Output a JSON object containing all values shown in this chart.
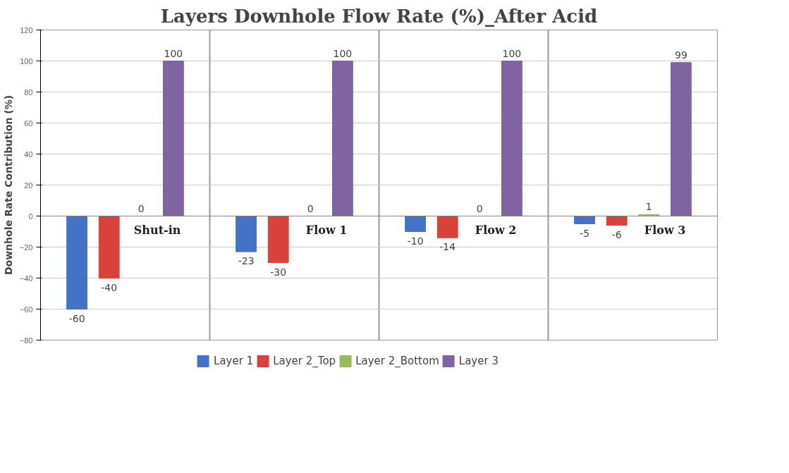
{
  "chart_data": {
    "type": "bar",
    "title": "Layers Downhole Flow Rate (%)_After Acid",
    "ylabel": "Downhole Rate Contribution (%)",
    "categories": [
      "Shut-in",
      "Flow 1",
      "Flow 2",
      "Flow 3"
    ],
    "series": [
      {
        "name": "Layer 1",
        "color": "#4472c4",
        "values": [
          -60,
          -23,
          -10,
          -5
        ]
      },
      {
        "name": "Layer 2_Top",
        "color": "#d9413b",
        "values": [
          -40,
          -30,
          -14,
          -6
        ]
      },
      {
        "name": "Layer 2_Bottom",
        "color": "#9bbb59",
        "values": [
          0,
          0,
          0,
          1
        ]
      },
      {
        "name": "Layer 3",
        "color": "#8064a2",
        "values": [
          100,
          100,
          100,
          99
        ]
      }
    ],
    "ylim": [
      -80,
      120
    ],
    "yticks": [
      -80,
      -60,
      -40,
      -20,
      0,
      20,
      40,
      60,
      80,
      100,
      120
    ],
    "grid": true,
    "legend": "bottom",
    "data_labels": true
  }
}
